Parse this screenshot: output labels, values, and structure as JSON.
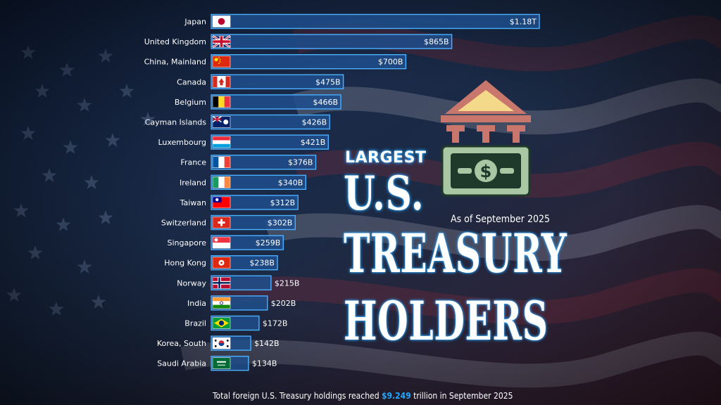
{
  "colors": {
    "background": "#0d1b33",
    "bar_fill": "#1e4f8f",
    "bar_border": "#4ab0ff",
    "title_glow": "#2aa6ff",
    "highlight": "#1ea8ff",
    "icon_roof": "#c9776d",
    "icon_bill": "#a9c7a2"
  },
  "title": {
    "line1": "LARGEST",
    "line2": "U.S.",
    "line3": "TREASURY",
    "line4": "HOLDERS"
  },
  "subtitle": "As of September 2025",
  "footnote": {
    "before": "Total foreign U.S. Treasury holdings reached ",
    "highlight": "$9.249",
    "after": " trillion in September 2025"
  },
  "icons": [
    "bank-building-icon",
    "dollar-bill-icon"
  ],
  "chart_data": {
    "type": "bar",
    "orientation": "horizontal",
    "unit": "billion USD",
    "categories": [
      "Japan",
      "United Kingdom",
      "China, Mainland",
      "Canada",
      "Belgium",
      "Cayman Islands",
      "Luxembourg",
      "France",
      "Ireland",
      "Taiwan",
      "Switzerland",
      "Singapore",
      "Hong Kong",
      "Norway",
      "India",
      "Brazil",
      "Korea, South",
      "Saudi Arabia"
    ],
    "values": [
      1180,
      865,
      700,
      475,
      466,
      426,
      421,
      376,
      340,
      312,
      302,
      259,
      238,
      215,
      202,
      172,
      142,
      134
    ],
    "labels": [
      "$1.18T",
      "$865B",
      "$700B",
      "$475B",
      "$466B",
      "$426B",
      "$421B",
      "$376B",
      "$340B",
      "$312B",
      "$302B",
      "$259B",
      "$238B",
      "$215B",
      "$202B",
      "$172B",
      "$142B",
      "$134B"
    ],
    "label_inside": [
      true,
      true,
      true,
      true,
      true,
      true,
      true,
      true,
      true,
      true,
      true,
      true,
      true,
      false,
      false,
      false,
      false,
      false
    ],
    "flags": [
      "japan-flag-icon",
      "uk-flag-icon",
      "china-flag-icon",
      "canada-flag-icon",
      "belgium-flag-icon",
      "cayman-islands-flag-icon",
      "luxembourg-flag-icon",
      "france-flag-icon",
      "ireland-flag-icon",
      "taiwan-flag-icon",
      "switzerland-flag-icon",
      "singapore-flag-icon",
      "hong-kong-flag-icon",
      "norway-flag-icon",
      "india-flag-icon",
      "brazil-flag-icon",
      "korea-south-flag-icon",
      "saudi-arabia-flag-icon"
    ],
    "xlim": [
      0,
      1180
    ]
  }
}
